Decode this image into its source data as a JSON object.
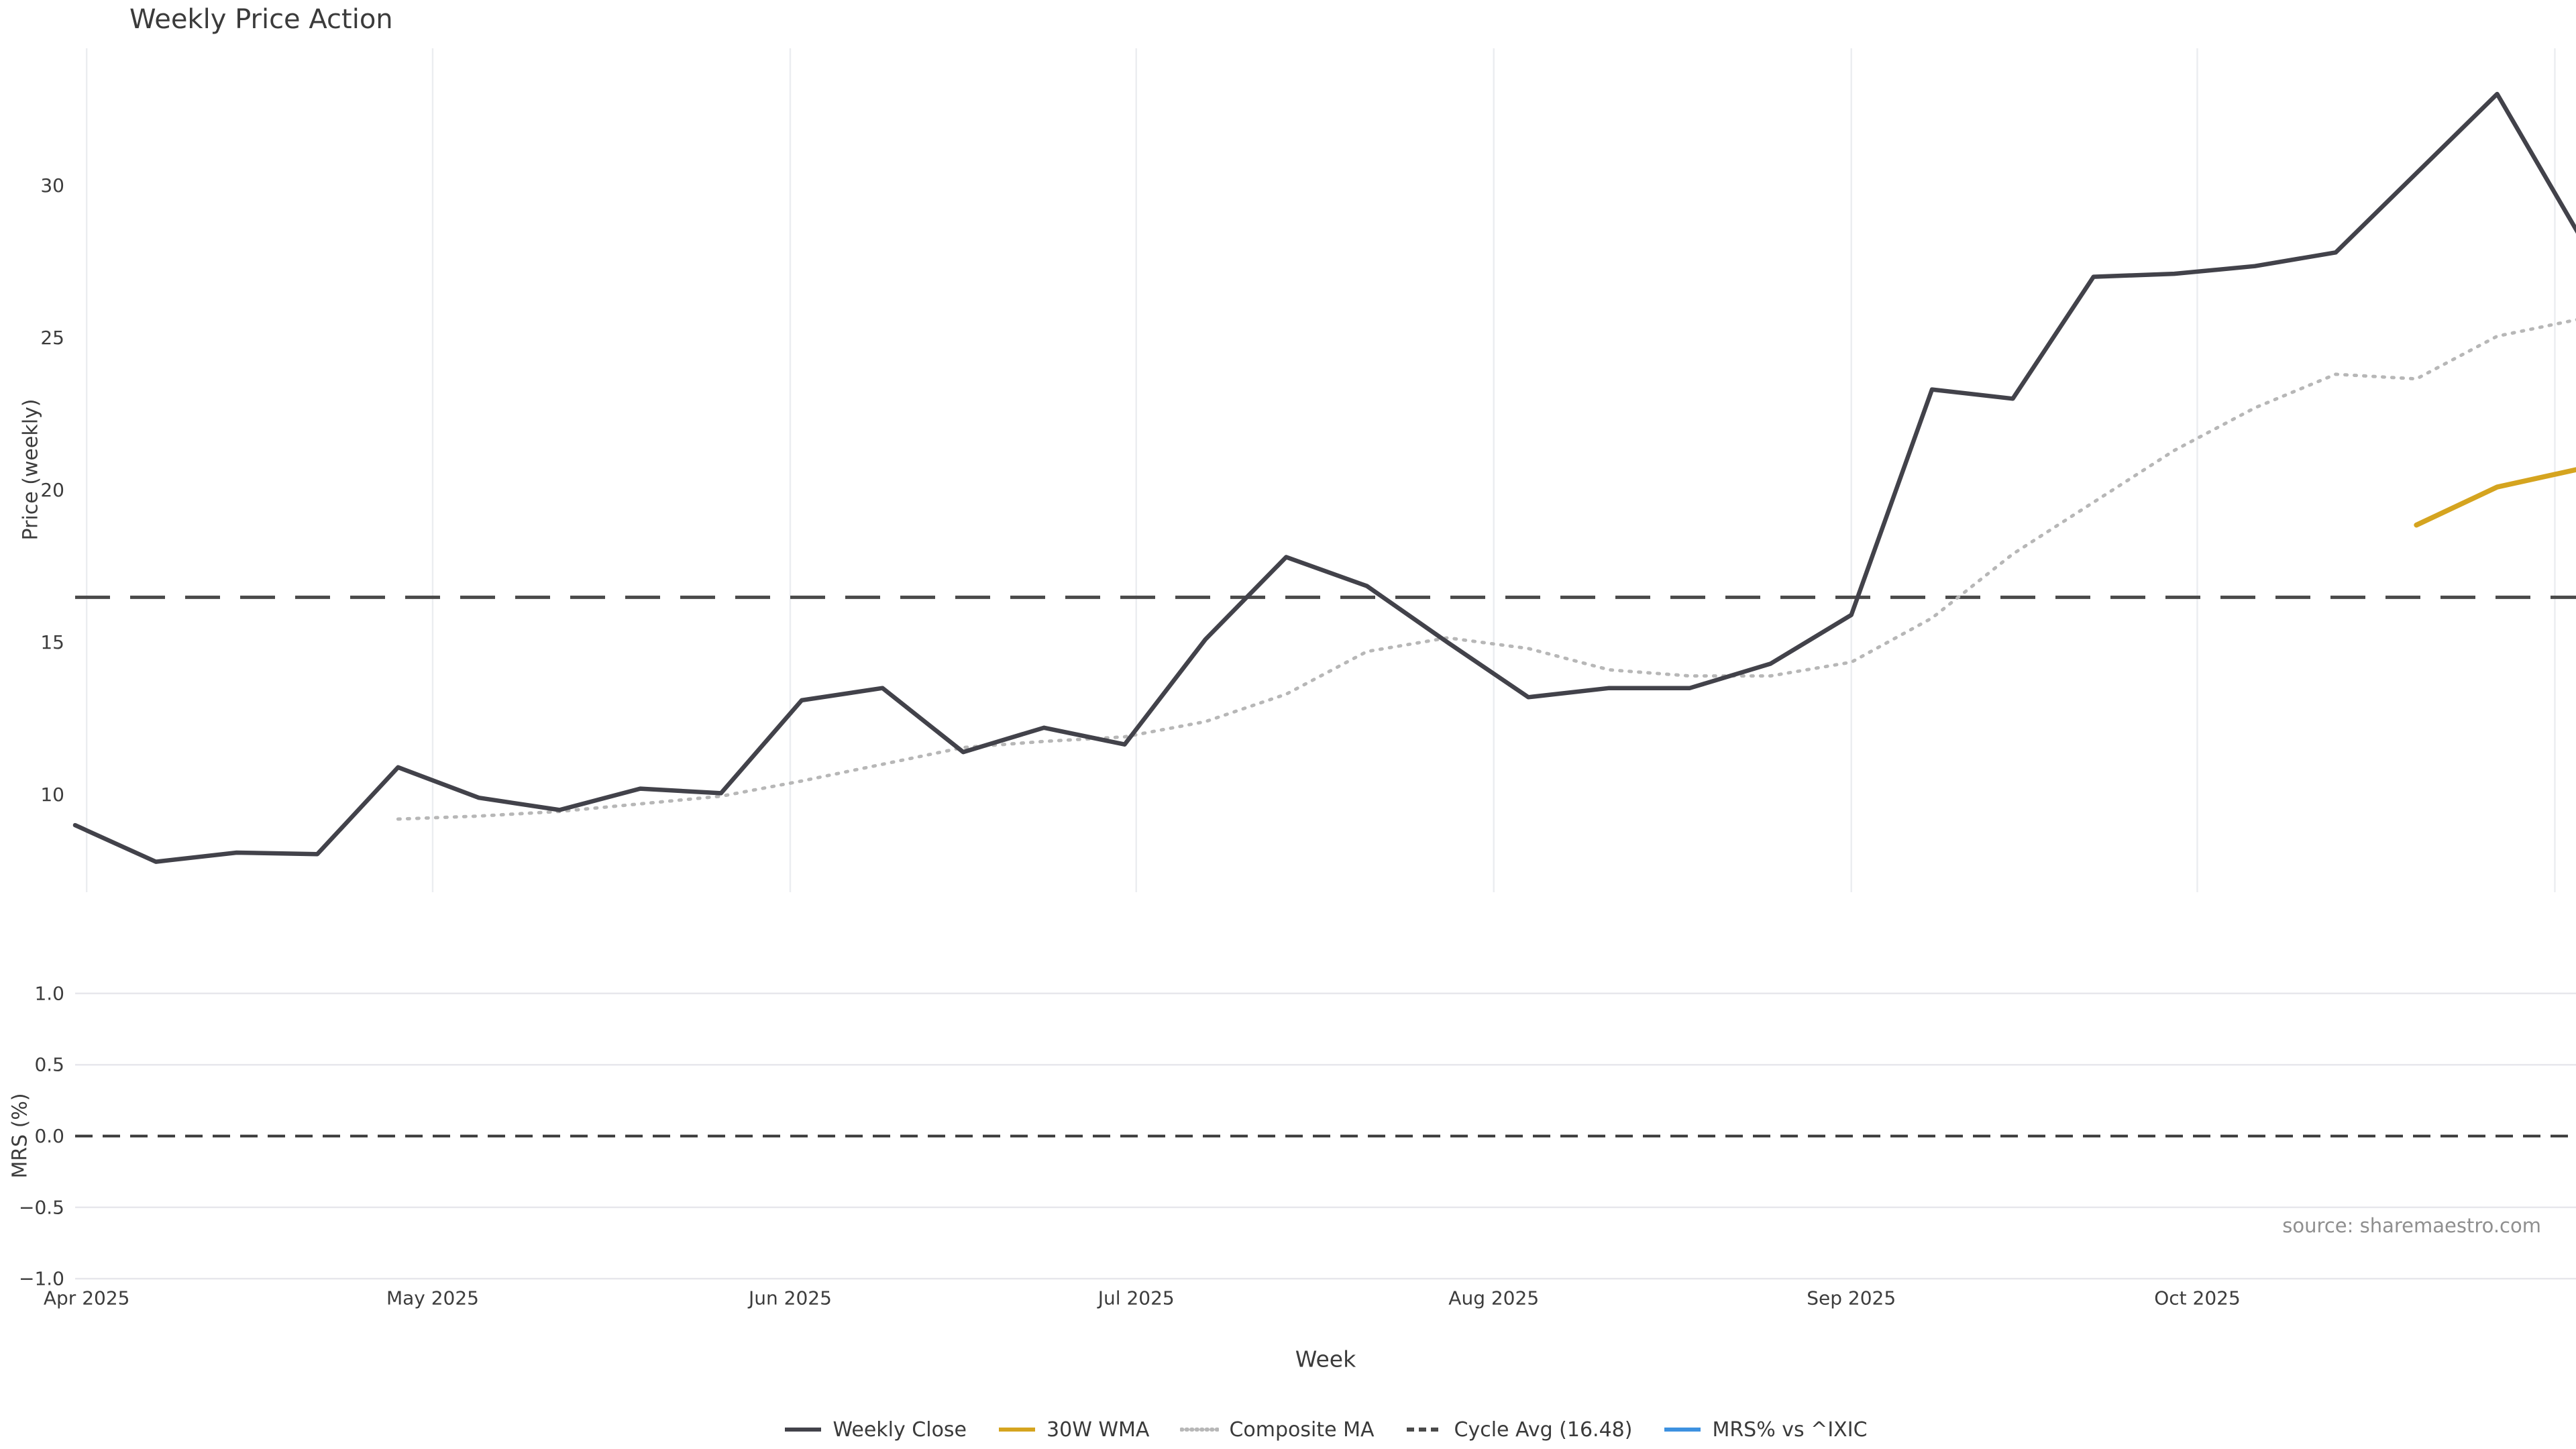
{
  "title": "Weekly Price Action",
  "source_note": "source: sharemaestro.com",
  "axes": {
    "price_label": "Price (weekly)",
    "mrs_label": "MRS (%)",
    "x_label": "Week",
    "price_tick_labels": [
      "10",
      "15",
      "20",
      "25",
      "30"
    ],
    "price_tick_values": [
      10,
      15,
      20,
      25,
      30
    ],
    "mrs_tick_labels": [
      "1.0",
      "0.5",
      "0.0",
      "−0.5",
      "−1.0"
    ],
    "mrs_tick_values": [
      1.0,
      0.5,
      0.0,
      -0.5,
      -1.0
    ],
    "x_tick_labels": [
      "Apr 2025",
      "May 2025",
      "Jun 2025",
      "Jul 2025",
      "Aug 2025",
      "Sep 2025",
      "Oct 2025"
    ]
  },
  "legend": [
    {
      "label": "Weekly Close",
      "color": "#42424a",
      "style": "solid"
    },
    {
      "label": "30W WMA",
      "color": "#d5a41f",
      "style": "solid"
    },
    {
      "label": "Composite MA",
      "color": "#b7b7b7",
      "style": "dotted"
    },
    {
      "label": "Cycle Avg (16.48)",
      "color": "#4a4a4a",
      "style": "dashed"
    },
    {
      "label": "MRS% vs ^IXIC",
      "color": "#3d91e0",
      "style": "solid"
    }
  ],
  "colors": {
    "weekly_close": "#42424a",
    "wma_30w": "#d5a41f",
    "composite_ma": "#b7b7b7",
    "cycle_avg": "#4a4a4a",
    "mrs_line": "#3d91e0",
    "mrs_zero_dash": "#3a3a3a",
    "gridline": "#ebedf0",
    "mrs_gridline": "#e7e7ec",
    "tick_text": "#3c3c3c"
  },
  "chart_data": {
    "type": "line",
    "title": "Weekly Price Action",
    "xlabel": "Week",
    "panels": [
      {
        "name": "price",
        "ylabel": "Price (weekly)",
        "ylim": [
          6.8,
          34.5
        ],
        "yticks": [
          10,
          15,
          20,
          25,
          30
        ],
        "grid": "vertical-months"
      },
      {
        "name": "mrs",
        "ylabel": "MRS (%)",
        "ylim": [
          -1.07,
          1.07
        ],
        "yticks": [
          1.0,
          0.5,
          0.0,
          -0.5,
          -1.0
        ],
        "grid": "horizontal"
      }
    ],
    "x": [
      "2025-03-31",
      "2025-04-07",
      "2025-04-14",
      "2025-04-21",
      "2025-04-28",
      "2025-05-05",
      "2025-05-12",
      "2025-05-19",
      "2025-05-26",
      "2025-06-02",
      "2025-06-09",
      "2025-06-16",
      "2025-06-23",
      "2025-06-30",
      "2025-07-07",
      "2025-07-14",
      "2025-07-21",
      "2025-07-28",
      "2025-08-04",
      "2025-08-11",
      "2025-08-18",
      "2025-08-25",
      "2025-09-01",
      "2025-09-08",
      "2025-09-15",
      "2025-09-22",
      "2025-09-29",
      "2025-10-06",
      "2025-10-13",
      "2025-10-20",
      "2025-10-27",
      "2025-11-03"
    ],
    "month_gridline_day_offsets": [
      1,
      31,
      62,
      92,
      123,
      154,
      184,
      215
    ],
    "series": [
      {
        "name": "Weekly Close",
        "panel": "price",
        "values": [
          9.0,
          7.8,
          8.1,
          8.05,
          10.9,
          9.9,
          9.5,
          10.2,
          10.05,
          13.1,
          13.5,
          11.4,
          12.2,
          11.65,
          15.1,
          17.8,
          16.85,
          15.0,
          13.2,
          13.5,
          13.5,
          14.3,
          15.9,
          23.3,
          23.0,
          27.0,
          27.1,
          27.35,
          27.8,
          30.4,
          33.0,
          28.45
        ]
      },
      {
        "name": "Composite MA",
        "panel": "price",
        "values": [
          null,
          null,
          null,
          null,
          9.2,
          9.3,
          9.45,
          9.7,
          9.95,
          10.45,
          11.0,
          11.55,
          11.75,
          11.9,
          12.4,
          13.3,
          14.7,
          15.15,
          14.8,
          14.1,
          13.9,
          13.9,
          14.35,
          15.8,
          17.9,
          19.6,
          21.3,
          22.7,
          23.8,
          23.65,
          25.05,
          25.6
        ]
      },
      {
        "name": "30W WMA",
        "panel": "price",
        "values": [
          null,
          null,
          null,
          null,
          null,
          null,
          null,
          null,
          null,
          null,
          null,
          null,
          null,
          null,
          null,
          null,
          null,
          null,
          null,
          null,
          null,
          null,
          null,
          null,
          null,
          null,
          null,
          null,
          null,
          18.85,
          20.1,
          20.68
        ]
      },
      {
        "name": "MRS% vs ^IXIC",
        "panel": "mrs",
        "values": [
          null,
          null,
          null,
          null,
          null,
          null,
          null,
          null,
          null,
          null,
          null,
          null,
          null,
          null,
          null,
          null,
          null,
          null,
          null,
          null,
          null,
          null,
          null,
          null,
          null,
          null,
          null,
          null,
          null,
          null,
          null,
          null
        ]
      }
    ],
    "cycle_avg": 16.48,
    "mrs_zero_line": 0.0,
    "legend_position": "bottom-center",
    "annotations": [
      "source: sharemaestro.com"
    ]
  }
}
